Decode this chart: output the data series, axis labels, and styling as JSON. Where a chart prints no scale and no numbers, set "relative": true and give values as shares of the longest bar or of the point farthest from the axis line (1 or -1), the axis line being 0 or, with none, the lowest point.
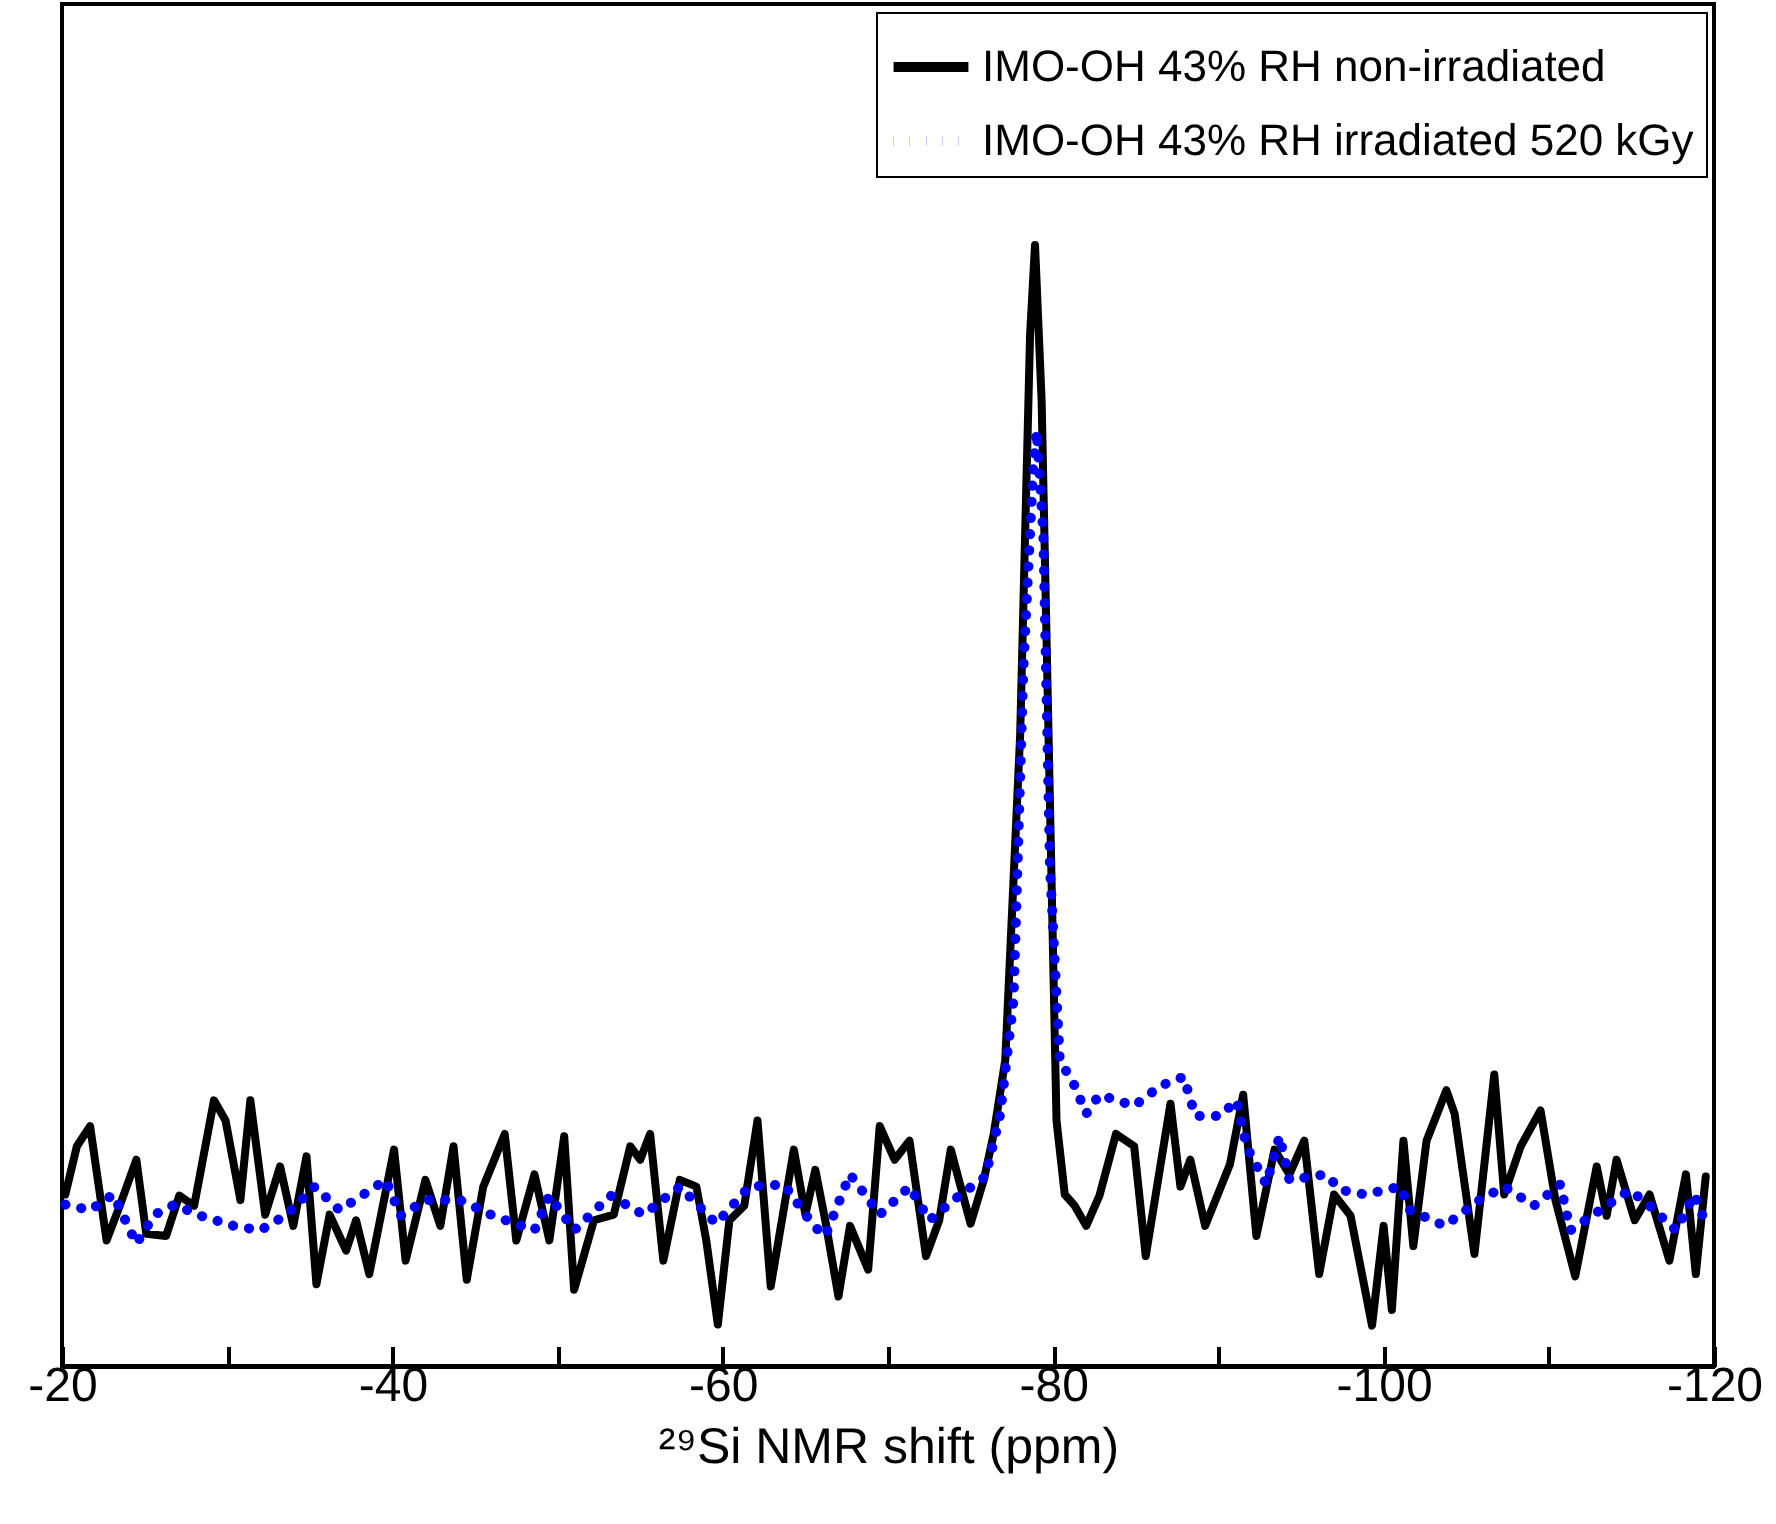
{
  "chart_data": {
    "type": "line",
    "relative": true,
    "xlabel": "²⁹Si NMR shift (ppm)",
    "xlim": [
      -20,
      -120
    ],
    "xticks": [
      -20,
      {
        "value": -30,
        "label": null
      },
      -40,
      {
        "value": -50,
        "label": null
      },
      -60,
      {
        "value": -70,
        "label": null
      },
      -80,
      {
        "value": -90,
        "label": null
      },
      -100,
      {
        "value": -110,
        "label": null
      },
      -120
    ],
    "legend": "top right",
    "marker": "none",
    "grid": false,
    "series": [
      {
        "name": "IMO-OH 43% RH non-irradiated",
        "color": "#000000",
        "line_style": "solid",
        "x": [
          -20.2,
          -20.9,
          -21.7,
          -22.7,
          -23.5,
          -24.5,
          -25.1,
          -26.3,
          -27.1,
          -28.0,
          -29.2,
          -29.9,
          -30.8,
          -31.4,
          -32.3,
          -33.2,
          -34.0,
          -34.8,
          -35.4,
          -36.2,
          -37.2,
          -37.8,
          -38.6,
          -40.1,
          -40.8,
          -42.0,
          -42.9,
          -43.7,
          -44.5,
          -45.5,
          -46.8,
          -47.5,
          -48.6,
          -49.5,
          -50.4,
          -51.0,
          -52.2,
          -53.4,
          -54.4,
          -55.0,
          -55.6,
          -56.4,
          -57.4,
          -58.4,
          -59.0,
          -59.7,
          -60.4,
          -61.3,
          -62.1,
          -62.9,
          -64.3,
          -65.0,
          -65.6,
          -66.2,
          -67.0,
          -67.7,
          -68.8,
          -69.5,
          -70.4,
          -71.3,
          -72.3,
          -73.1,
          -73.8,
          -75.0,
          -75.8,
          -76.4,
          -77.1,
          -78.0,
          -78.6,
          -78.9,
          -79.3,
          -79.8,
          -80.2,
          -80.7,
          -81.3,
          -82.0,
          -82.8,
          -83.8,
          -84.9,
          -85.6,
          -87.1,
          -87.7,
          -88.3,
          -89.2,
          -90.7,
          -91.5,
          -92.3,
          -93.4,
          -94.3,
          -95.2,
          -96.1,
          -97.0,
          -98.0,
          -99.3,
          -100.0,
          -100.5,
          -101.2,
          -101.8,
          -102.6,
          -103.8,
          -104.3,
          -105.5,
          -106.7,
          -107.3,
          -108.3,
          -109.5,
          -110.4,
          -111.6,
          -112.9,
          -113.5,
          -114.1,
          -115.2,
          -116.1,
          -117.3,
          -118.3,
          -118.9,
          -119.5
        ],
        "values": [
          0.153,
          0.196,
          0.214,
          0.112,
          0.143,
          0.184,
          0.118,
          0.116,
          0.152,
          0.143,
          0.237,
          0.219,
          0.148,
          0.237,
          0.135,
          0.178,
          0.125,
          0.187,
          0.073,
          0.135,
          0.103,
          0.13,
          0.082,
          0.193,
          0.094,
          0.166,
          0.125,
          0.196,
          0.077,
          0.16,
          0.207,
          0.112,
          0.171,
          0.112,
          0.205,
          0.068,
          0.13,
          0.135,
          0.196,
          0.184,
          0.207,
          0.094,
          0.166,
          0.16,
          0.112,
          0.037,
          0.13,
          0.143,
          0.219,
          0.071,
          0.193,
          0.135,
          0.175,
          0.13,
          0.062,
          0.125,
          0.086,
          0.214,
          0.184,
          0.201,
          0.098,
          0.13,
          0.193,
          0.127,
          0.166,
          0.207,
          0.273,
          0.563,
          0.92,
          1.0,
          0.861,
          0.504,
          0.219,
          0.153,
          0.143,
          0.125,
          0.152,
          0.207,
          0.196,
          0.098,
          0.234,
          0.16,
          0.184,
          0.125,
          0.18,
          0.242,
          0.116,
          0.193,
          0.171,
          0.201,
          0.082,
          0.153,
          0.134,
          0.036,
          0.125,
          0.05,
          0.201,
          0.107,
          0.201,
          0.246,
          0.225,
          0.1,
          0.26,
          0.153,
          0.196,
          0.228,
          0.148,
          0.08,
          0.178,
          0.134,
          0.184,
          0.13,
          0.153,
          0.094,
          0.171,
          0.082,
          0.169
        ]
      },
      {
        "name": "IMO-OH 43% RH irradiated 520 kGy",
        "color": "#0000ff",
        "line_style": "dotted",
        "x": [
          -20.2,
          -21.7,
          -23.1,
          -24.5,
          -25.6,
          -26.8,
          -28.4,
          -30.4,
          -32.0,
          -33.6,
          -35.3,
          -36.8,
          -39.6,
          -40.5,
          -42.0,
          -44.1,
          -46.1,
          -48.6,
          -49.5,
          -51.0,
          -53.2,
          -55.2,
          -57.4,
          -59.6,
          -61.6,
          -63.7,
          -65.5,
          -66.2,
          -67.7,
          -69.5,
          -71.3,
          -72.5,
          -74.4,
          -75.9,
          -76.8,
          -77.6,
          -78.2,
          -78.8,
          -79.0,
          -79.4,
          -79.8,
          -80.4,
          -81.3,
          -82.0,
          -82.8,
          -84.9,
          -86.5,
          -87.9,
          -88.6,
          -90.1,
          -91.1,
          -91.7,
          -92.9,
          -93.7,
          -94.3,
          -96.5,
          -97.4,
          -98.9,
          -101.0,
          -101.6,
          -103.7,
          -105.8,
          -107.3,
          -109.1,
          -110.7,
          -111.3,
          -113.1,
          -114.9,
          -116.1,
          -117.7,
          -118.8,
          -119.5
        ],
        "values": [
          0.144,
          0.139,
          0.153,
          0.109,
          0.135,
          0.144,
          0.134,
          0.125,
          0.121,
          0.135,
          0.16,
          0.139,
          0.166,
          0.134,
          0.148,
          0.148,
          0.134,
          0.121,
          0.152,
          0.121,
          0.152,
          0.135,
          0.16,
          0.127,
          0.16,
          0.162,
          0.125,
          0.116,
          0.171,
          0.135,
          0.16,
          0.13,
          0.153,
          0.169,
          0.225,
          0.326,
          0.624,
          0.802,
          0.834,
          0.742,
          0.446,
          0.273,
          0.25,
          0.225,
          0.242,
          0.232,
          0.25,
          0.258,
          0.223,
          0.223,
          0.237,
          0.196,
          0.162,
          0.205,
          0.166,
          0.171,
          0.157,
          0.153,
          0.16,
          0.139,
          0.125,
          0.148,
          0.16,
          0.143,
          0.162,
          0.121,
          0.139,
          0.157,
          0.143,
          0.121,
          0.153,
          0.127
        ]
      }
    ]
  }
}
